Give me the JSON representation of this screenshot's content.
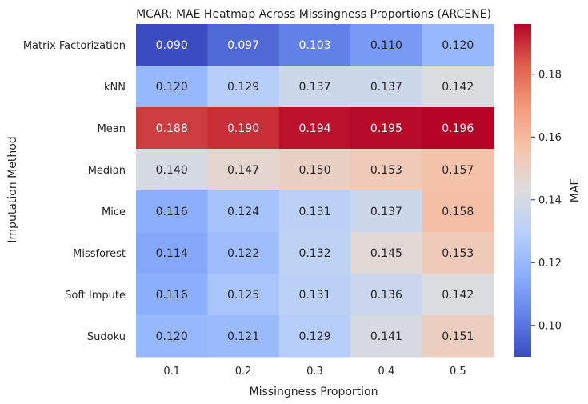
{
  "chart_data": {
    "type": "heatmap",
    "title": "MCAR: MAE Heatmap Across Missingness Proportions (ARCENE)",
    "xlabel": "Missingness Proportion",
    "ylabel": "Imputation Method",
    "x_categories": [
      "0.1",
      "0.2",
      "0.3",
      "0.4",
      "0.5"
    ],
    "y_categories": [
      "Matrix Factorization",
      "kNN",
      "Mean",
      "Median",
      "Mice",
      "Missforest",
      "Soft Impute",
      "Sudoku"
    ],
    "values": [
      [
        0.09,
        0.097,
        0.103,
        0.11,
        0.12
      ],
      [
        0.12,
        0.129,
        0.137,
        0.137,
        0.142
      ],
      [
        0.188,
        0.19,
        0.194,
        0.195,
        0.196
      ],
      [
        0.14,
        0.147,
        0.15,
        0.153,
        0.157
      ],
      [
        0.116,
        0.124,
        0.131,
        0.137,
        0.158
      ],
      [
        0.114,
        0.122,
        0.132,
        0.145,
        0.153
      ],
      [
        0.116,
        0.125,
        0.131,
        0.136,
        0.142
      ],
      [
        0.12,
        0.121,
        0.129,
        0.141,
        0.151
      ]
    ],
    "value_format": "%.3f",
    "colormap": "coolwarm",
    "vmin": 0.09,
    "vmax": 0.196,
    "colorbar": {
      "label": "MAE",
      "ticks": [
        "0.10",
        "0.12",
        "0.14",
        "0.16",
        "0.18"
      ]
    }
  }
}
